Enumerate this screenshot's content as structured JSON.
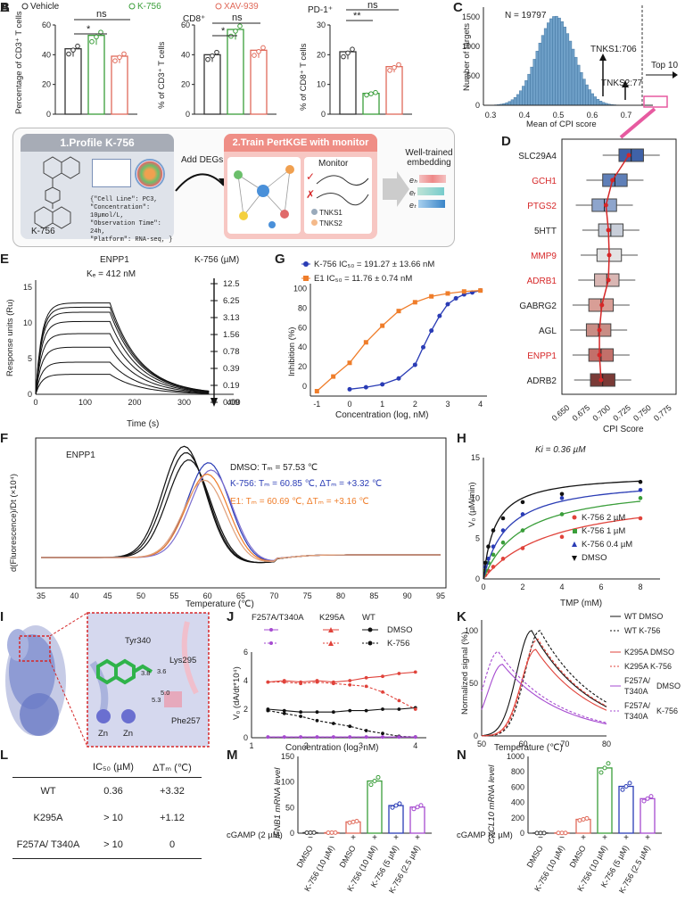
{
  "panel_letters": [
    "A",
    "B",
    "C",
    "D",
    "E",
    "F",
    "G",
    "H",
    "I",
    "J",
    "K",
    "L",
    "M",
    "N"
  ],
  "colors": {
    "vehicle": "#333333",
    "k756": "#3a9e3a",
    "xav939": "#e06a5a",
    "blue": "#2a3cb5",
    "orange": "#ef7d2a",
    "purple": "#a64bd0",
    "red": "#d62728",
    "pink": "#e75aa0",
    "hist": "#6fa0c8"
  },
  "panelA": {
    "legend": [
      "Vehicle",
      "K-756",
      "XAV-939"
    ],
    "sub1": {
      "ylabel": "Percentage of CD3⁺ T cells",
      "ticks": [
        "0",
        "20",
        "40",
        "60"
      ],
      "sig": [
        "*",
        "ns"
      ]
    },
    "sub2": {
      "title": "CD8⁺",
      "ylabel": "% of CD3⁺ T cells",
      "ticks": [
        "0",
        "20",
        "40",
        "60"
      ],
      "sig": [
        "*",
        "ns"
      ]
    },
    "sub3": {
      "title": "PD-1⁺",
      "ylabel": "% of CD8⁺ T cells",
      "ticks": [
        "0",
        "10",
        "20",
        "30"
      ],
      "sig": [
        "**",
        "ns"
      ]
    }
  },
  "panelB": {
    "step1": "1.Profile K-756",
    "step2": "2.Train PertKGE with monitor",
    "add_degs": "Add DEGs",
    "monitor": "Monitor",
    "compound": "K-756",
    "meta": [
      "{\"Cell Line\": PC3,",
      "\"Concentration\": 10µmol/L,",
      "\"Observation Time\": 24h,",
      "\"Platform\": RNA-seq, }"
    ],
    "tnks": [
      "TNKS1",
      "TNKS2"
    ],
    "embedding": [
      "Well-trained",
      "embedding"
    ],
    "emb_labels": [
      "eₕ",
      "eᵣ",
      "eₜ"
    ]
  },
  "panelC": {
    "n": "N = 19797",
    "ann1": "TNKS1:706",
    "ann2": "TNKS2:77",
    "top": "Top 10",
    "xlabel": "Mean of CPI score",
    "ylabel": "Number of targets",
    "xticks": [
      "0.3",
      "0.4",
      "0.5",
      "0.6",
      "0.7"
    ],
    "yticks": [
      "0",
      "500",
      "1000",
      "1500"
    ]
  },
  "panelD": {
    "targets": [
      "SLC29A4",
      "GCH1",
      "PTGS2",
      "5HTT",
      "MMP9",
      "ADRB1",
      "GABRG2",
      "AGL",
      "ENPP1",
      "ADRB2"
    ],
    "red_targets": [
      "GCH1",
      "PTGS2",
      "MMP9",
      "ADRB1",
      "ENPP1"
    ],
    "xlabel": "CPI Score",
    "xticks": [
      "0.650",
      "0.675",
      "0.700",
      "0.725",
      "0.750",
      "0.775"
    ]
  },
  "panelE": {
    "title": "ENPP1",
    "kd": "Kₑ = 412 nM",
    "legend_title": "K-756 (µM)",
    "concs": [
      "12.5",
      "6.25",
      "3.13",
      "1.56",
      "0.78",
      "0.39",
      "0.19",
      "0.09"
    ],
    "xlabel": "Time (s)",
    "ylabel": "Response units (Ru)",
    "xticks": [
      "0",
      "100",
      "200",
      "300",
      "400"
    ],
    "yticks": [
      "0",
      "5",
      "10",
      "15"
    ]
  },
  "panelF": {
    "title": "ENPP1",
    "dmso": "DMSO: Tₘ = 57.53 ℃",
    "k756": "K-756: Tₘ = 60.85 ℃, ΔTₘ = +3.32 ℃",
    "e1": "E1: Tₘ = 60.69 ℃, ΔTₘ = +3.16 ℃",
    "xlabel": "Temperature (℃)",
    "ylabel": "d(Fluorescence)/Dt (×10⁴)",
    "xticks": [
      "35",
      "40",
      "45",
      "50",
      "55",
      "60",
      "65",
      "70",
      "75",
      "80",
      "85",
      "90",
      "95"
    ]
  },
  "panelG": {
    "leg1": "K-756 IC₅₀ = 191.27 ± 13.66 nM",
    "leg2": "E1 IC₅₀ = 11.76 ± 0.74 nM",
    "xlabel": "Concentration (log, nM)",
    "ylabel": "Inhibition (%)",
    "xticks": [
      "-1",
      "0",
      "1",
      "2",
      "3",
      "4"
    ],
    "yticks": [
      "0",
      "20",
      "40",
      "60",
      "80",
      "100"
    ]
  },
  "panelH": {
    "ki": "Ki = 0.36 µM",
    "legend": [
      "K-756 2 µM",
      "K-756 1 µM",
      "K-756 0.4 µM",
      "DMSO"
    ],
    "xlabel": "TMP (mM)",
    "ylabel": "V₀ (µM/min)",
    "xticks": [
      "0",
      "2",
      "4",
      "6",
      "8"
    ],
    "yticks": [
      "0",
      "5",
      "10",
      "15"
    ]
  },
  "panelI": {
    "residues": [
      "Tyr340",
      "Lys295",
      "Phe257"
    ],
    "metals": [
      "Zn",
      "Zn"
    ],
    "distances": [
      "3.8",
      "3.6",
      "5.0",
      "5.3"
    ]
  },
  "panelJ": {
    "headers": [
      "F257A/T340A",
      "K295A",
      "WT"
    ],
    "legend": [
      "DMSO",
      "K-756"
    ],
    "xlabel": "Concentration (log, nM)",
    "ylabel": "V₀ (dA/dt*10⁴)",
    "xticks": [
      "1",
      "2",
      "3",
      "4"
    ],
    "yticks": [
      "0",
      "2",
      "4",
      "6"
    ]
  },
  "panelK": {
    "legend": [
      "WT DMSO",
      "WT K-756",
      "K295A DMSO",
      "K295A K-756",
      "F257A/",
      "T340A",
      "DMSO",
      "F257A/",
      "T340A",
      "K-756"
    ],
    "xlabel": "Temperature (℃)",
    "ylabel": "Normalized signal (%)",
    "xticks": [
      "50",
      "60",
      "70",
      "80"
    ],
    "yticks": [
      "0",
      "50",
      "100"
    ]
  },
  "panelL": {
    "col1": "IC₅₀ (µM)",
    "col2": "ΔTₘ (℃)",
    "rows": [
      [
        "WT",
        "0.36",
        "+3.32"
      ],
      [
        "K295A",
        "> 10",
        "+1.12"
      ],
      [
        "F257A/ T340A",
        "> 10",
        "0"
      ]
    ]
  },
  "panelM": {
    "ylabel": "IFNB1 mRNA level",
    "yticks": [
      "0",
      "50",
      "100",
      "150"
    ],
    "cgamp": "cGAMP (2 µM)",
    "signs": [
      "−",
      "−",
      "+",
      "+",
      "+",
      "+"
    ],
    "groups": [
      "DMSO",
      "K-756 (10 µM)",
      "DMSO",
      "K-756 (10 µM)",
      "K-756 (5 µM)",
      "K-756 (2.5 µM)"
    ]
  },
  "panelN": {
    "ylabel": "CXCL10 mRNA level",
    "yticks": [
      "0",
      "200",
      "400",
      "600",
      "800",
      "1000"
    ],
    "cgamp": "cGAMP (2 µM)",
    "signs": [
      "−",
      "−",
      "+",
      "+",
      "+",
      "+"
    ],
    "groups": [
      "DMSO",
      "K-756 (10 µM)",
      "DMSO",
      "K-756 (10 µM)",
      "K-756 (5 µM)",
      "K-756 (2.5 µM)"
    ]
  },
  "chart_data": [
    {
      "panel": "A1",
      "type": "bar",
      "categories": [
        "Vehicle",
        "K-756",
        "XAV-939"
      ],
      "values": [
        44,
        53,
        39
      ],
      "ylim": [
        0,
        60
      ]
    },
    {
      "panel": "A2",
      "type": "bar",
      "categories": [
        "Vehicle",
        "K-756",
        "XAV-939"
      ],
      "values": [
        40,
        57,
        43
      ],
      "ylim": [
        0,
        60
      ]
    },
    {
      "panel": "A3",
      "type": "bar",
      "categories": [
        "Vehicle",
        "K-756",
        "XAV-939"
      ],
      "values": [
        21,
        7,
        16
      ],
      "ylim": [
        0,
        30
      ]
    },
    {
      "panel": "D",
      "type": "boxplot",
      "categories": [
        "SLC29A4",
        "GCH1",
        "PTGS2",
        "5HTT",
        "MMP9",
        "ADRB1",
        "GABRG2",
        "AGL",
        "ENPP1",
        "ADRB2"
      ],
      "medians": [
        0.725,
        0.705,
        0.692,
        0.7,
        0.698,
        0.695,
        0.688,
        0.685,
        0.688,
        0.69
      ],
      "means": [
        0.722,
        0.702,
        0.694,
        0.697,
        0.698,
        0.697,
        0.689,
        0.686,
        0.686,
        0.688
      ],
      "xlim": [
        0.64,
        0.78
      ]
    },
    {
      "panel": "G",
      "type": "line",
      "series": [
        {
          "name": "K-756",
          "x": [
            0,
            0.5,
            1,
            1.5,
            2,
            2.25,
            2.5,
            2.75,
            3,
            3.25,
            3.5,
            3.75,
            4
          ],
          "y": [
            -3,
            -1,
            2,
            8,
            22,
            40,
            57,
            72,
            84,
            90,
            94,
            96,
            98
          ]
        },
        {
          "name": "E1",
          "x": [
            -1,
            -0.5,
            0,
            0.5,
            1,
            1.5,
            2,
            2.5,
            3,
            3.5,
            4
          ],
          "y": [
            -5,
            10,
            24,
            45,
            62,
            77,
            86,
            92,
            95,
            97,
            98
          ]
        }
      ],
      "xlim": [
        -1.2,
        4.2
      ],
      "ylim": [
        -10,
        105
      ]
    },
    {
      "panel": "H",
      "type": "scatter",
      "series": [
        {
          "name": "K-756 2 µM",
          "x": [
            0.1,
            0.25,
            0.5,
            1,
            2,
            4,
            8
          ],
          "y": [
            0.5,
            1,
            1.5,
            2.5,
            3.8,
            5.2,
            7.5
          ]
        },
        {
          "name": "K-756 1 µM",
          "x": [
            0.1,
            0.25,
            0.5,
            1,
            2,
            4,
            8
          ],
          "y": [
            1,
            2,
            3,
            4.5,
            6,
            8,
            10
          ]
        },
        {
          "name": "K-756 0.4 µM",
          "x": [
            0.1,
            0.25,
            0.5,
            1,
            2,
            4,
            8
          ],
          "y": [
            1.5,
            2.5,
            4,
            6,
            8,
            10,
            11
          ]
        },
        {
          "name": "DMSO",
          "x": [
            0.1,
            0.25,
            0.5,
            1,
            2,
            4,
            8
          ],
          "y": [
            2,
            4,
            6,
            7.5,
            9.5,
            10.5,
            12
          ]
        }
      ],
      "xlim": [
        0,
        9
      ],
      "ylim": [
        0,
        15
      ]
    },
    {
      "panel": "J",
      "type": "line",
      "series": [
        {
          "name": "WT DMSO",
          "x": [
            1.3,
            1.6,
            1.9,
            2.2,
            2.5,
            2.8,
            3.1,
            3.4,
            3.7,
            4
          ],
          "y": [
            2,
            1.9,
            1.8,
            1.8,
            1.8,
            1.9,
            1.9,
            2,
            2,
            2.1
          ]
        },
        {
          "name": "WT K-756",
          "x": [
            1.3,
            1.6,
            1.9,
            2.2,
            2.5,
            2.8,
            3.1,
            3.4,
            3.7,
            4
          ],
          "y": [
            1.9,
            1.7,
            1.5,
            1.2,
            1,
            0.8,
            0.5,
            0.3,
            0.1,
            0.05
          ]
        },
        {
          "name": "K295A DMSO",
          "x": [
            1.3,
            1.6,
            1.9,
            2.2,
            2.5,
            2.8,
            3.1,
            3.4,
            3.7,
            4
          ],
          "y": [
            3.9,
            4,
            3.9,
            4,
            3.9,
            4,
            4.2,
            4.3,
            4.5,
            4.6
          ]
        },
        {
          "name": "K295A K-756",
          "x": [
            1.3,
            1.6,
            1.9,
            2.2,
            2.5,
            2.8,
            3.1,
            3.4,
            3.7,
            4
          ],
          "y": [
            3.9,
            3.9,
            3.8,
            3.9,
            3.8,
            3.7,
            3.6,
            3.2,
            2.6,
            2
          ]
        },
        {
          "name": "F257A/T340A DMSO",
          "x": [
            1.3,
            1.6,
            1.9,
            2.2,
            2.5,
            2.8,
            3.1,
            3.4,
            3.7,
            4
          ],
          "y": [
            0.05,
            0.05,
            0.05,
            0.05,
            0.05,
            0.05,
            0.05,
            0.05,
            0.05,
            0.05
          ]
        },
        {
          "name": "F257A/T340A K-756",
          "x": [
            1.3,
            1.6,
            1.9,
            2.2,
            2.5,
            2.8,
            3.1,
            3.4,
            3.7,
            4
          ],
          "y": [
            0.05,
            0.05,
            0.05,
            0.05,
            0.05,
            0.05,
            0.05,
            0.05,
            0.05,
            0.05
          ]
        }
      ],
      "xlim": [
        1,
        4.2
      ],
      "ylim": [
        0,
        6
      ]
    },
    {
      "panel": "M",
      "type": "bar",
      "categories": [
        "DMSO -",
        "K-756 (10 µM) -",
        "DMSO +",
        "K-756 (10 µM) +",
        "K-756 (5 µM) +",
        "K-756 (2.5 µM) +"
      ],
      "values": [
        1,
        1,
        22,
        102,
        54,
        51
      ],
      "ylim": [
        0,
        150
      ]
    },
    {
      "panel": "N",
      "type": "bar",
      "categories": [
        "DMSO -",
        "K-756 (10 µM) -",
        "DMSO +",
        "K-756 (10 µM) +",
        "K-756 (5 µM) +",
        "K-756 (2.5 µM) +"
      ],
      "values": [
        2,
        3,
        180,
        850,
        610,
        450
      ],
      "ylim": [
        0,
        1000
      ]
    }
  ]
}
